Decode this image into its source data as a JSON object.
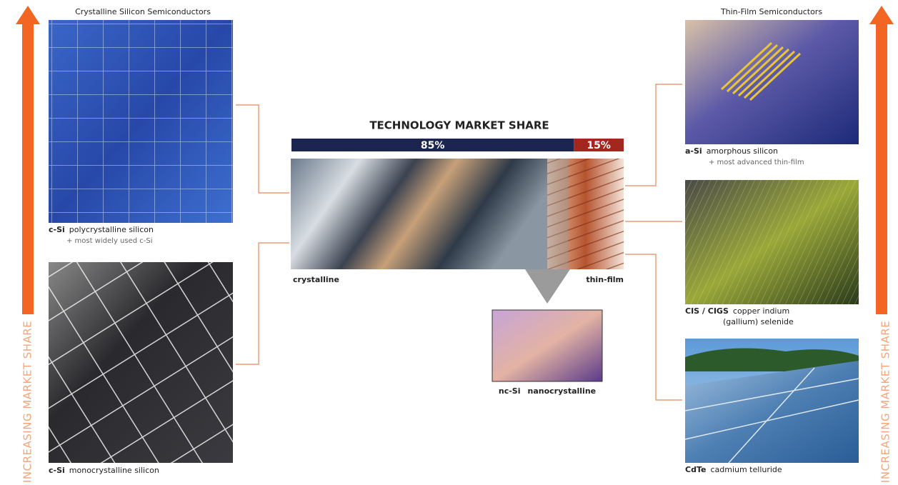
{
  "axis_label": "INCREASING MARKET SHARE",
  "left_panel": {
    "heading": "Crystalline Silicon Semiconductors",
    "items": [
      {
        "code": "c-Si",
        "name": "polycrystalline silicon",
        "note": "+ most widely used c-Si"
      },
      {
        "code": "c-Si",
        "name": "monocrystalline silicon"
      }
    ]
  },
  "right_panel": {
    "heading": "Thin-Film Semiconductors",
    "items": [
      {
        "code": "a-Si",
        "name": "amorphous silicon",
        "note": "+ most advanced thin-film"
      },
      {
        "code": "CIS / CIGS",
        "name": "copper indium",
        "name_line2": "(gallium) selenide"
      },
      {
        "code": "CdTe",
        "name": "cadmium telluride"
      }
    ]
  },
  "market_share": {
    "title": "TECHNOLOGY MARKET SHARE",
    "segments": [
      {
        "value": 85,
        "label": "85%",
        "color": "#1b2550",
        "caption": "crystalline"
      },
      {
        "value": 15,
        "label": "15%",
        "color": "#a3261f",
        "caption": "thin-film"
      }
    ]
  },
  "nc_si": {
    "code": "nc-Si",
    "name": "nanocrystalline"
  }
}
